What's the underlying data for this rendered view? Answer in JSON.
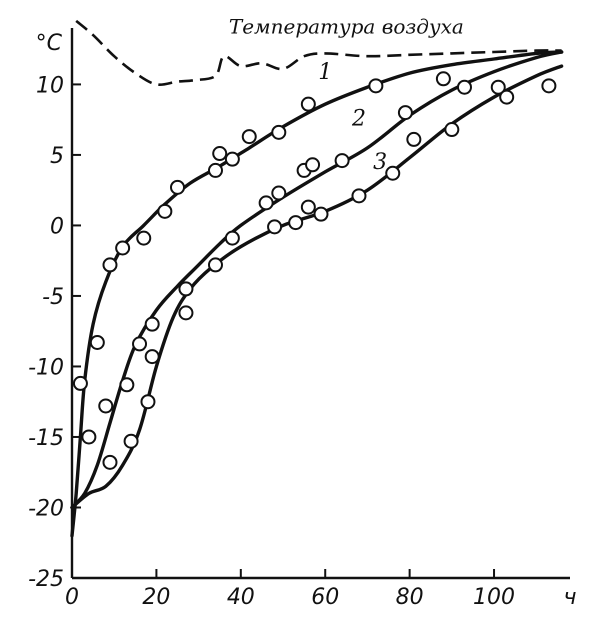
{
  "chart_data": {
    "type": "line",
    "title": "",
    "xlabel": "",
    "ylabel": "",
    "x_unit": "ч",
    "y_unit": "°С",
    "xlim": [
      0,
      118
    ],
    "ylim": [
      -25,
      14
    ],
    "x_ticks": [
      0,
      20,
      40,
      60,
      80,
      100
    ],
    "y_ticks": [
      -25,
      -20,
      -15,
      -10,
      -5,
      0,
      5,
      10
    ],
    "x_tick_labels": [
      "0",
      "20",
      "40",
      "60",
      "80",
      "100"
    ],
    "y_tick_labels": [
      "-25",
      "-20",
      "-15",
      "-10",
      "-5",
      "0",
      "5",
      "10"
    ],
    "grid": false,
    "annotations": [
      {
        "text": "Температура воздуха",
        "x": 65,
        "y": 13.6
      }
    ],
    "series": [
      {
        "name": "1",
        "label_at": {
          "x": 60,
          "y": 10.4
        },
        "curve": [
          [
            0,
            -22
          ],
          [
            1,
            -19
          ],
          [
            2,
            -15
          ],
          [
            3,
            -11
          ],
          [
            5,
            -7
          ],
          [
            8,
            -4
          ],
          [
            12,
            -1.5
          ],
          [
            17,
            0
          ],
          [
            22,
            1.5
          ],
          [
            28,
            3
          ],
          [
            35,
            4.2
          ],
          [
            42,
            5.5
          ],
          [
            50,
            7
          ],
          [
            60,
            8.6
          ],
          [
            70,
            9.8
          ],
          [
            80,
            10.8
          ],
          [
            90,
            11.4
          ],
          [
            100,
            11.8
          ],
          [
            110,
            12.2
          ],
          [
            116,
            12.3
          ]
        ],
        "points": [
          [
            2,
            -11.2
          ],
          [
            4,
            -15
          ],
          [
            6,
            -8.3
          ],
          [
            9,
            -2.8
          ],
          [
            12,
            -1.6
          ],
          [
            17,
            -0.9
          ],
          [
            22,
            1
          ],
          [
            25,
            2.7
          ],
          [
            34,
            3.9
          ],
          [
            35,
            5.1
          ],
          [
            38,
            4.7
          ],
          [
            42,
            6.3
          ],
          [
            49,
            6.6
          ],
          [
            56,
            8.6
          ],
          [
            72,
            9.9
          ],
          [
            88,
            10.4
          ],
          [
            93,
            9.8
          ],
          [
            101,
            9.8
          ]
        ]
      },
      {
        "name": "2",
        "label_at": {
          "x": 68,
          "y": 7.1
        },
        "curve": [
          [
            0,
            -20
          ],
          [
            3,
            -19
          ],
          [
            6,
            -17
          ],
          [
            9,
            -14
          ],
          [
            12,
            -11
          ],
          [
            15,
            -8.5
          ],
          [
            20,
            -6
          ],
          [
            25,
            -4.3
          ],
          [
            30,
            -2.8
          ],
          [
            35,
            -1.3
          ],
          [
            40,
            0
          ],
          [
            50,
            2
          ],
          [
            60,
            3.8
          ],
          [
            70,
            5.5
          ],
          [
            80,
            7.8
          ],
          [
            90,
            9.6
          ],
          [
            100,
            10.9
          ],
          [
            110,
            11.9
          ],
          [
            116,
            12.3
          ]
        ],
        "points": [
          [
            8,
            -12.8
          ],
          [
            9,
            -16.8
          ],
          [
            13,
            -11.3
          ],
          [
            16,
            -8.4
          ],
          [
            19,
            -7
          ],
          [
            27,
            -4.5
          ],
          [
            38,
            -0.9
          ],
          [
            46,
            1.6
          ],
          [
            49,
            2.3
          ],
          [
            55,
            3.9
          ],
          [
            57,
            4.3
          ],
          [
            64,
            4.6
          ],
          [
            79,
            8
          ],
          [
            103,
            9.1
          ]
        ]
      },
      {
        "name": "3",
        "label_at": {
          "x": 73,
          "y": 4
        },
        "curve": [
          [
            0,
            -20
          ],
          [
            4,
            -19
          ],
          [
            8,
            -18.5
          ],
          [
            12,
            -17
          ],
          [
            16,
            -14.5
          ],
          [
            20,
            -10
          ],
          [
            24,
            -6.5
          ],
          [
            28,
            -4.5
          ],
          [
            33,
            -3
          ],
          [
            40,
            -1.5
          ],
          [
            50,
            0
          ],
          [
            60,
            1
          ],
          [
            70,
            2.5
          ],
          [
            80,
            4.8
          ],
          [
            90,
            7.2
          ],
          [
            100,
            9.1
          ],
          [
            110,
            10.6
          ],
          [
            116,
            11.3
          ]
        ],
        "points": [
          [
            14,
            -15.3
          ],
          [
            18,
            -12.5
          ],
          [
            19,
            -9.3
          ],
          [
            27,
            -6.2
          ],
          [
            34,
            -2.8
          ],
          [
            48,
            -0.1
          ],
          [
            53,
            0.2
          ],
          [
            56,
            1.3
          ],
          [
            59,
            0.8
          ],
          [
            68,
            2.1
          ],
          [
            76,
            3.7
          ],
          [
            81,
            6.1
          ],
          [
            90,
            6.8
          ],
          [
            113,
            9.9
          ]
        ]
      },
      {
        "name": "",
        "style": "dashed",
        "curve": [
          [
            1,
            14.5
          ],
          [
            5,
            13.5
          ],
          [
            10,
            12
          ],
          [
            15,
            10.8
          ],
          [
            20,
            10
          ],
          [
            25,
            10.2
          ],
          [
            29,
            10.3
          ],
          [
            34,
            10.6
          ],
          [
            36,
            12
          ],
          [
            40,
            11.3
          ],
          [
            45,
            11.5
          ],
          [
            50,
            11.1
          ],
          [
            55,
            12
          ],
          [
            60,
            12.2
          ],
          [
            70,
            12
          ],
          [
            80,
            12.1
          ],
          [
            90,
            12.2
          ],
          [
            100,
            12.3
          ],
          [
            110,
            12.4
          ],
          [
            116,
            12.4
          ]
        ]
      }
    ]
  }
}
